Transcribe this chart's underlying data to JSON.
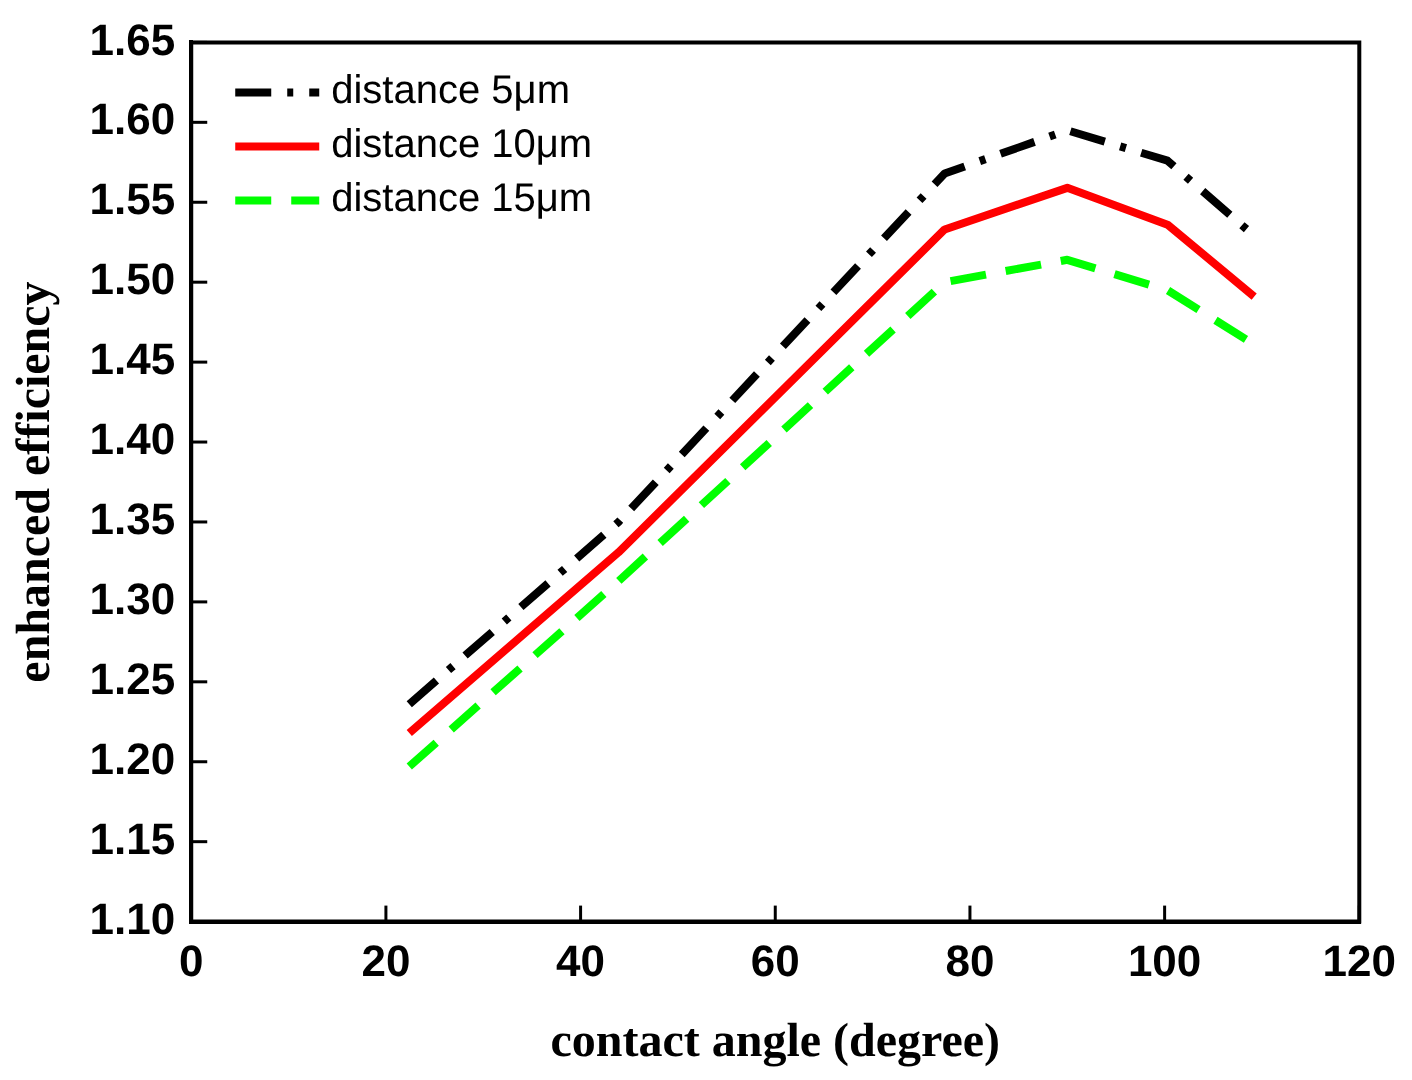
{
  "chart_data": {
    "type": "line",
    "xlabel": "contact angle (degree)",
    "ylabel": "enhanced efficiency",
    "xlim": [
      0,
      120
    ],
    "xticks": [
      0,
      20,
      40,
      60,
      80,
      100,
      120
    ],
    "ylim": [
      1.1,
      1.65
    ],
    "yticks": [
      {
        "value": 1.1,
        "label": "1.10"
      },
      1.15,
      {
        "value": 1.2,
        "label": "1.20"
      },
      1.25,
      {
        "value": 1.3,
        "label": "1.30"
      },
      1.35,
      {
        "value": 1.4,
        "label": "1.40"
      },
      1.45,
      {
        "value": 1.5,
        "label": "1.50"
      },
      1.55,
      {
        "value": 1.6,
        "label": "1.60"
      },
      1.65
    ],
    "grid": false,
    "legend": "top left",
    "marker": "none",
    "series": [
      {
        "name": "distance 5μm",
        "color": "#000000",
        "line_style": "dashdot",
        "x": [
          22.4,
          43.9,
          77.4,
          90.0,
          100.3,
          109.2
        ],
        "values": [
          1.236,
          1.35,
          1.568,
          1.595,
          1.576,
          1.529
        ]
      },
      {
        "name": "distance 10μm",
        "color": "#ff0000",
        "line_style": "solid",
        "x": [
          22.4,
          43.9,
          77.4,
          90.0,
          100.3,
          109.2
        ],
        "values": [
          1.218,
          1.331,
          1.533,
          1.559,
          1.536,
          1.491
        ]
      },
      {
        "name": "distance 15μm",
        "color": "#00ff00",
        "line_style": "dashed",
        "x": [
          22.4,
          43.9,
          77.4,
          90.0,
          100.3,
          109.2
        ],
        "values": [
          1.197,
          1.313,
          1.5,
          1.514,
          1.495,
          1.461
        ]
      }
    ]
  }
}
